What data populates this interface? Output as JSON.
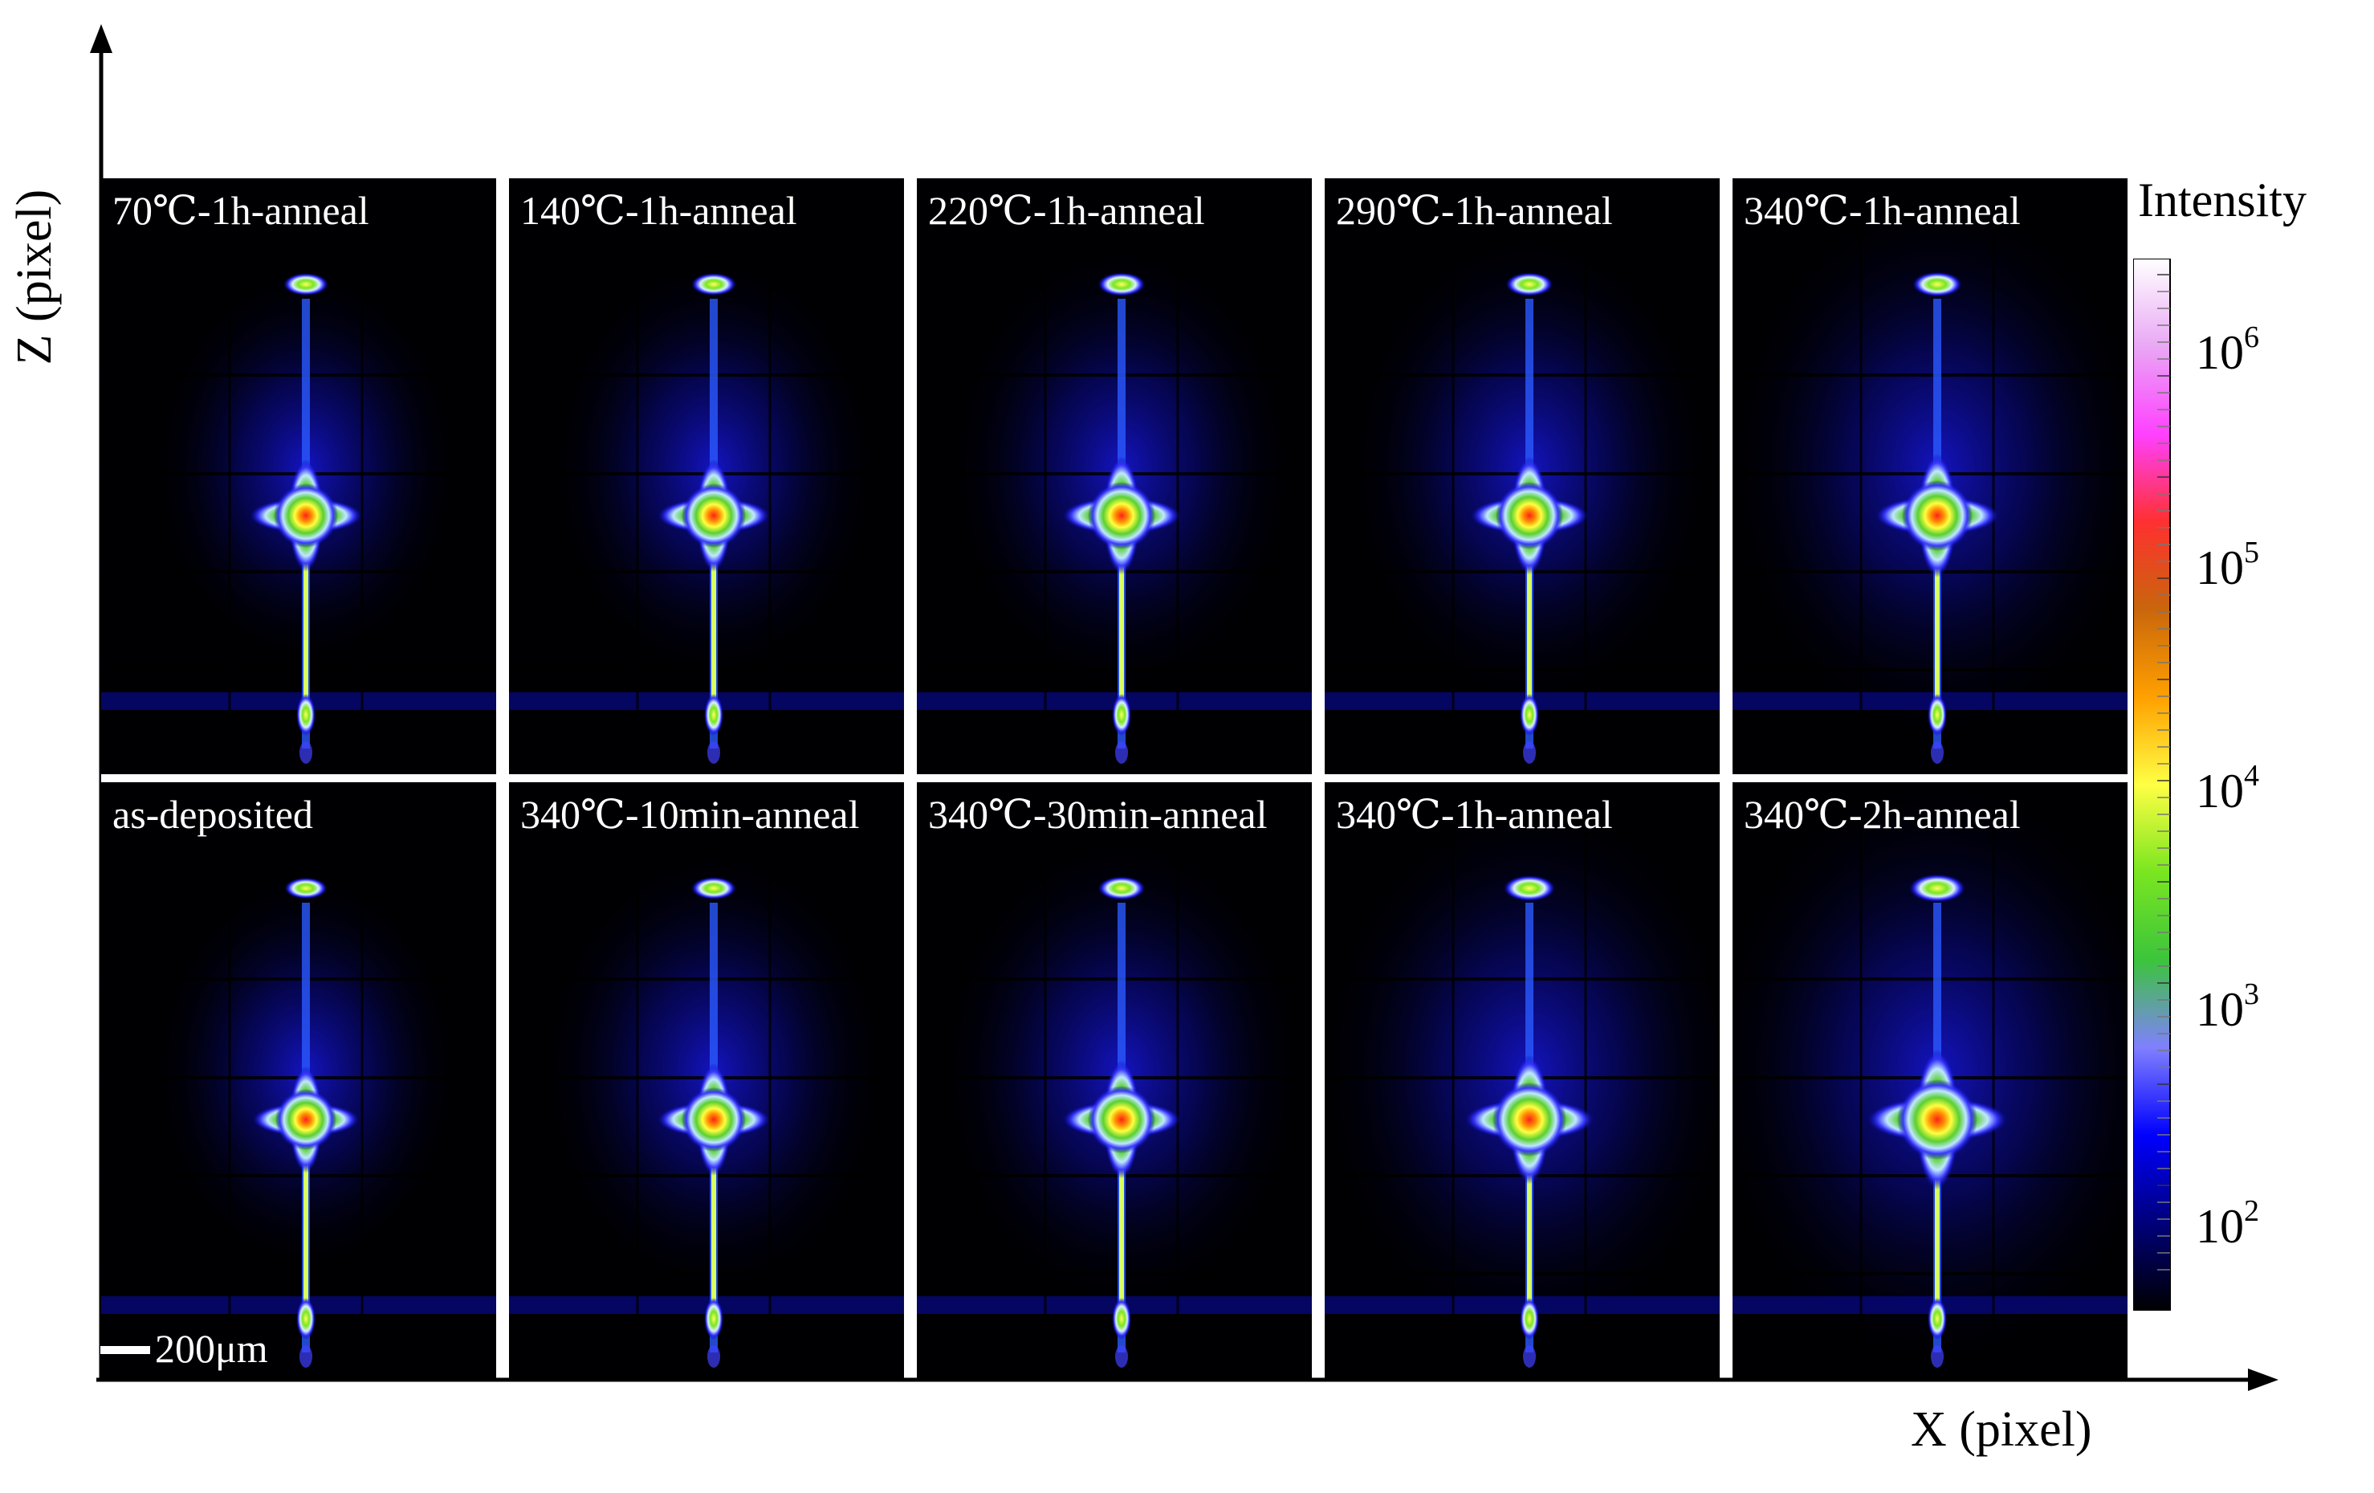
{
  "axes": {
    "x_label": "X (pixel)",
    "z_label": "Z (pixel)"
  },
  "colorbar": {
    "title": "Intensity",
    "ticks": [
      {
        "base": "10",
        "exp": "6"
      },
      {
        "base": "10",
        "exp": "5"
      },
      {
        "base": "10",
        "exp": "4"
      },
      {
        "base": "10",
        "exp": "3"
      },
      {
        "base": "10",
        "exp": "2"
      }
    ],
    "colors": [
      "#ffffff",
      "#e9a8f5",
      "#ff40ff",
      "#ff3030",
      "#c9660c",
      "#ffa000",
      "#ffff44",
      "#7ae620",
      "#3cc43c",
      "#8080ff",
      "#0000ff",
      "#00007a",
      "#000000"
    ]
  },
  "scale_bar": {
    "label": "200μm"
  },
  "panels": [
    {
      "label": "70℃-1h-anneal",
      "peak_scale": 1.0,
      "spread": 0.8
    },
    {
      "label": "140℃-1h-anneal",
      "peak_scale": 1.0,
      "spread": 0.85
    },
    {
      "label": "220℃-1h-anneal",
      "peak_scale": 1.05,
      "spread": 0.9
    },
    {
      "label": "290℃-1h-anneal",
      "peak_scale": 1.05,
      "spread": 0.95
    },
    {
      "label": "340℃-1h-anneal",
      "peak_scale": 1.1,
      "spread": 1.1
    },
    {
      "label": "as-deposited",
      "peak_scale": 0.95,
      "spread": 0.8
    },
    {
      "label": "340℃-10min-anneal",
      "peak_scale": 1.0,
      "spread": 0.9
    },
    {
      "label": "340℃-30min-anneal",
      "peak_scale": 1.05,
      "spread": 0.95
    },
    {
      "label": "340℃-1h-anneal",
      "peak_scale": 1.15,
      "spread": 1.1
    },
    {
      "label": "340℃-2h-anneal",
      "peak_scale": 1.25,
      "spread": 1.2
    }
  ]
}
